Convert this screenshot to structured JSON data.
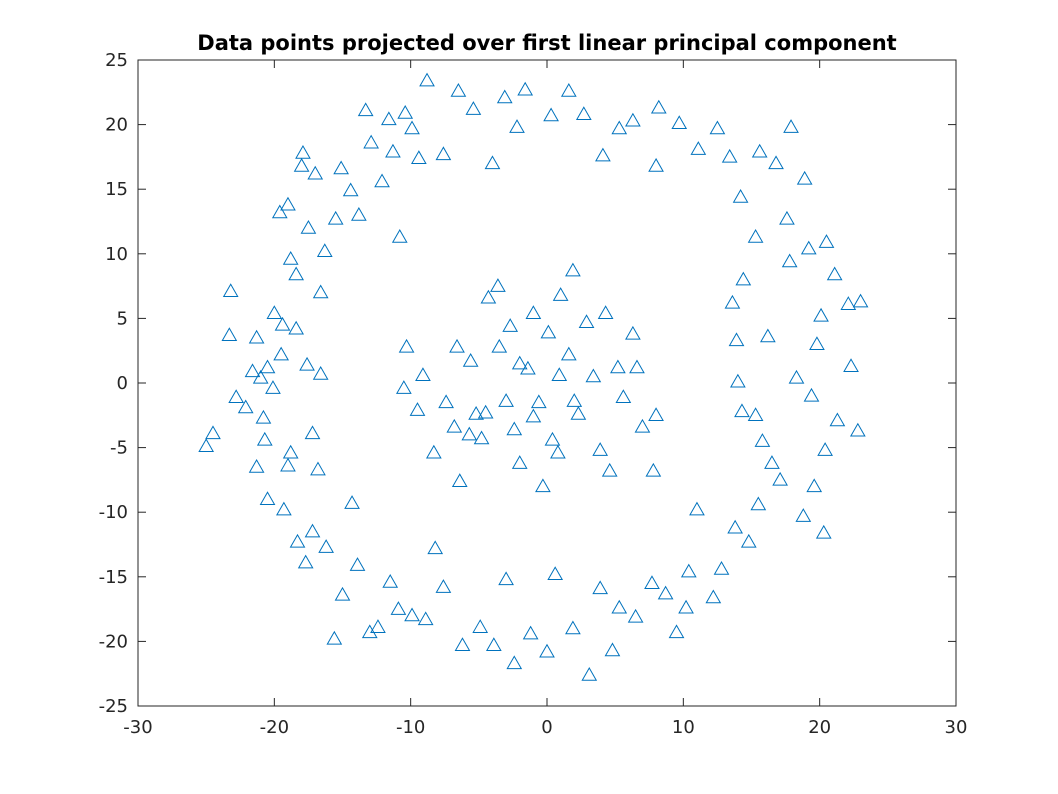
{
  "chart_data": {
    "type": "scatter",
    "title": "Data points projected over first linear principal component",
    "xlabel": "",
    "ylabel": "",
    "xlim": [
      -30,
      30
    ],
    "ylim": [
      -25,
      25
    ],
    "xticks": [
      -30,
      -20,
      -10,
      0,
      10,
      20,
      30
    ],
    "yticks": [
      -25,
      -20,
      -15,
      -10,
      -5,
      0,
      5,
      10,
      15,
      20,
      25
    ],
    "grid": false,
    "marker": "triangle-open",
    "color": "#0072BD",
    "series": [
      {
        "points": [
          [
            -25.0,
            -4.9
          ],
          [
            -24.5,
            -3.9
          ],
          [
            -23.2,
            7.1
          ],
          [
            -23.3,
            3.7
          ],
          [
            -22.8,
            -1.1
          ],
          [
            -22.1,
            -1.9
          ],
          [
            -21.6,
            0.9
          ],
          [
            -21.3,
            3.5
          ],
          [
            -21.0,
            0.4
          ],
          [
            -20.8,
            -2.7
          ],
          [
            -20.5,
            1.2
          ],
          [
            -20.0,
            5.4
          ],
          [
            -19.6,
            13.2
          ],
          [
            -19.4,
            4.5
          ],
          [
            -19.0,
            13.8
          ],
          [
            -18.8,
            9.6
          ],
          [
            -18.4,
            8.4
          ],
          [
            -18.0,
            16.8
          ],
          [
            -17.9,
            17.8
          ],
          [
            -17.5,
            12.0
          ],
          [
            -17.0,
            16.2
          ],
          [
            -16.6,
            7.0
          ],
          [
            -16.3,
            10.2
          ],
          [
            -15.5,
            12.7
          ],
          [
            -15.1,
            16.6
          ],
          [
            -14.4,
            14.9
          ],
          [
            -13.8,
            13.0
          ],
          [
            -13.3,
            21.1
          ],
          [
            -12.9,
            18.6
          ],
          [
            -12.1,
            15.6
          ],
          [
            -11.6,
            20.4
          ],
          [
            -11.3,
            17.9
          ],
          [
            -10.8,
            11.3
          ],
          [
            -10.4,
            20.9
          ],
          [
            -9.9,
            19.7
          ],
          [
            -9.4,
            17.4
          ],
          [
            -8.8,
            23.4
          ],
          [
            -7.6,
            17.7
          ],
          [
            -6.5,
            22.6
          ],
          [
            -5.4,
            21.2
          ],
          [
            -4.0,
            17.0
          ],
          [
            -3.1,
            22.1
          ],
          [
            -2.2,
            19.8
          ],
          [
            -1.6,
            22.7
          ],
          [
            0.3,
            20.7
          ],
          [
            1.6,
            22.6
          ],
          [
            2.7,
            20.8
          ],
          [
            4.1,
            17.6
          ],
          [
            5.3,
            19.7
          ],
          [
            6.3,
            20.3
          ],
          [
            8.0,
            16.8
          ],
          [
            8.2,
            21.3
          ],
          [
            9.7,
            20.1
          ],
          [
            11.1,
            18.1
          ],
          [
            12.5,
            19.7
          ],
          [
            13.4,
            17.5
          ],
          [
            14.2,
            14.4
          ],
          [
            15.6,
            17.9
          ],
          [
            16.8,
            17.0
          ],
          [
            17.9,
            19.8
          ],
          [
            18.9,
            15.8
          ],
          [
            17.8,
            9.4
          ],
          [
            19.2,
            10.4
          ],
          [
            20.5,
            10.9
          ],
          [
            21.1,
            8.4
          ],
          [
            22.1,
            6.1
          ],
          [
            23.0,
            6.3
          ],
          [
            20.1,
            5.2
          ],
          [
            19.8,
            3.0
          ],
          [
            18.3,
            0.4
          ],
          [
            19.4,
            -1.0
          ],
          [
            21.3,
            -2.9
          ],
          [
            22.3,
            1.3
          ],
          [
            22.8,
            -3.7
          ],
          [
            20.4,
            -5.2
          ],
          [
            19.6,
            -8.0
          ],
          [
            20.3,
            -11.6
          ],
          [
            18.8,
            -10.3
          ],
          [
            17.1,
            -7.5
          ],
          [
            16.5,
            -6.2
          ],
          [
            15.8,
            -4.5
          ],
          [
            15.3,
            -2.5
          ],
          [
            14.0,
            0.1
          ],
          [
            14.3,
            -2.2
          ],
          [
            13.9,
            3.3
          ],
          [
            13.6,
            6.2
          ],
          [
            14.4,
            8.0
          ],
          [
            15.3,
            11.3
          ],
          [
            16.2,
            3.6
          ],
          [
            17.6,
            12.7
          ],
          [
            15.5,
            -9.4
          ],
          [
            14.8,
            -12.3
          ],
          [
            13.8,
            -11.2
          ],
          [
            12.8,
            -14.4
          ],
          [
            12.2,
            -16.6
          ],
          [
            11.0,
            -9.8
          ],
          [
            10.4,
            -14.6
          ],
          [
            10.2,
            -17.4
          ],
          [
            9.5,
            -19.3
          ],
          [
            8.7,
            -16.3
          ],
          [
            7.7,
            -15.5
          ],
          [
            6.5,
            -18.1
          ],
          [
            5.3,
            -17.4
          ],
          [
            3.9,
            -15.9
          ],
          [
            4.8,
            -20.7
          ],
          [
            3.1,
            -22.6
          ],
          [
            1.9,
            -19.0
          ],
          [
            0.6,
            -14.8
          ],
          [
            0.0,
            -20.8
          ],
          [
            -1.2,
            -19.4
          ],
          [
            -2.4,
            -21.7
          ],
          [
            -3.0,
            -15.2
          ],
          [
            -3.9,
            -20.3
          ],
          [
            -4.9,
            -18.9
          ],
          [
            -6.2,
            -20.3
          ],
          [
            -7.6,
            -15.8
          ],
          [
            -8.2,
            -12.8
          ],
          [
            -8.9,
            -18.3
          ],
          [
            -9.9,
            -18.0
          ],
          [
            -10.9,
            -17.5
          ],
          [
            -11.5,
            -15.4
          ],
          [
            -12.4,
            -18.9
          ],
          [
            -13.0,
            -19.3
          ],
          [
            -13.9,
            -14.1
          ],
          [
            -14.3,
            -9.3
          ],
          [
            -15.0,
            -16.4
          ],
          [
            -15.6,
            -19.8
          ],
          [
            -16.2,
            -12.7
          ],
          [
            -17.2,
            -11.5
          ],
          [
            -17.7,
            -13.9
          ],
          [
            -18.3,
            -12.3
          ],
          [
            -19.0,
            -6.4
          ],
          [
            -19.3,
            -9.8
          ],
          [
            -20.5,
            -9.0
          ],
          [
            -21.3,
            -6.5
          ],
          [
            -20.7,
            -4.4
          ],
          [
            -18.8,
            -5.4
          ],
          [
            -17.2,
            -3.9
          ],
          [
            -16.8,
            -6.7
          ],
          [
            -16.6,
            0.7
          ],
          [
            -17.6,
            1.4
          ],
          [
            -18.4,
            4.2
          ],
          [
            -19.5,
            2.2
          ],
          [
            -20.1,
            -0.4
          ],
          [
            -9.1,
            0.6
          ],
          [
            -10.5,
            -0.4
          ],
          [
            -10.3,
            2.8
          ],
          [
            -9.5,
            -2.1
          ],
          [
            -8.3,
            -5.4
          ],
          [
            -7.4,
            -1.5
          ],
          [
            -6.8,
            -3.4
          ],
          [
            -6.4,
            -7.6
          ],
          [
            -5.6,
            1.7
          ],
          [
            -5.2,
            -2.4
          ],
          [
            -4.8,
            -4.3
          ],
          [
            -4.3,
            6.6
          ],
          [
            -3.6,
            7.5
          ],
          [
            -3.5,
            2.8
          ],
          [
            -3.0,
            -1.4
          ],
          [
            -2.7,
            4.4
          ],
          [
            -2.4,
            -3.6
          ],
          [
            -2.0,
            -6.2
          ],
          [
            -1.4,
            1.1
          ],
          [
            -1.0,
            5.4
          ],
          [
            -0.6,
            -1.5
          ],
          [
            -0.3,
            -8.0
          ],
          [
            0.1,
            3.9
          ],
          [
            0.4,
            -4.4
          ],
          [
            0.8,
            -5.4
          ],
          [
            1.0,
            6.8
          ],
          [
            1.6,
            2.2
          ],
          [
            1.9,
            8.7
          ],
          [
            2.3,
            -2.4
          ],
          [
            2.9,
            4.7
          ],
          [
            3.4,
            0.5
          ],
          [
            3.9,
            -5.2
          ],
          [
            4.3,
            5.4
          ],
          [
            4.6,
            -6.8
          ],
          [
            5.2,
            1.2
          ],
          [
            5.6,
            -1.1
          ],
          [
            6.3,
            3.8
          ],
          [
            6.6,
            1.2
          ],
          [
            7.0,
            -3.4
          ],
          [
            8.0,
            -2.5
          ],
          [
            7.8,
            -6.8
          ],
          [
            -4.5,
            -2.3
          ],
          [
            -2.0,
            1.5
          ],
          [
            -1.0,
            -2.6
          ],
          [
            0.9,
            0.6
          ],
          [
            2.0,
            -1.4
          ],
          [
            -5.7,
            -4.0
          ],
          [
            -6.6,
            2.8
          ]
        ]
      }
    ]
  }
}
